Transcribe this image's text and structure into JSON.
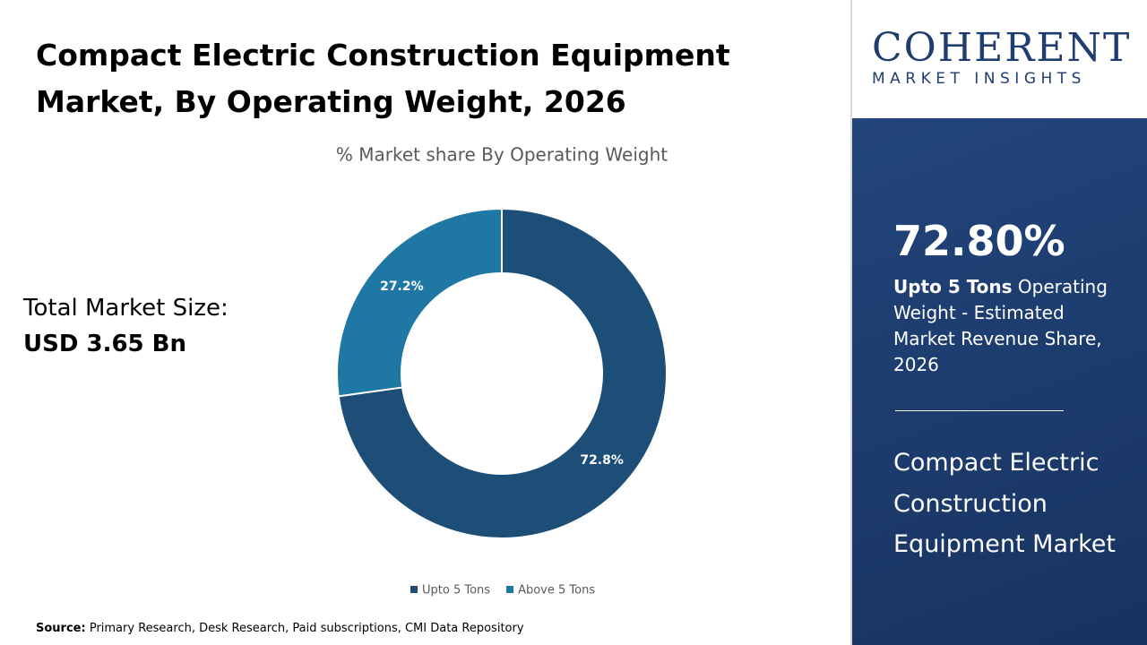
{
  "header": {
    "title": "Compact Electric Construction Equipment Market, By Operating Weight, 2026"
  },
  "total": {
    "label": "Total Market Size:",
    "value": "USD 3.65 Bn"
  },
  "chart_data": {
    "type": "pie",
    "subtitle": "% Market share By Operating Weight",
    "categories": [
      "Upto 5 Tons",
      "Above 5 Tons"
    ],
    "values": [
      72.8,
      27.2
    ],
    "value_labels": [
      "72.8%",
      "27.2%"
    ],
    "colors": [
      "#1c4e78",
      "#1f77a3"
    ],
    "legend": "bottom"
  },
  "source": {
    "label": "Source:",
    "text": "Primary Research, Desk Research, Paid subscriptions, CMI Data Repository"
  },
  "logo": {
    "name": "COHERENT",
    "tagline": "MARKET INSIGHTS"
  },
  "highlight": {
    "value": "72.80%",
    "segment": "Upto 5 Tons",
    "text": " Operating Weight - Estimated Market Revenue Share, 2026",
    "market": "Compact Electric Construction Equipment Market"
  }
}
